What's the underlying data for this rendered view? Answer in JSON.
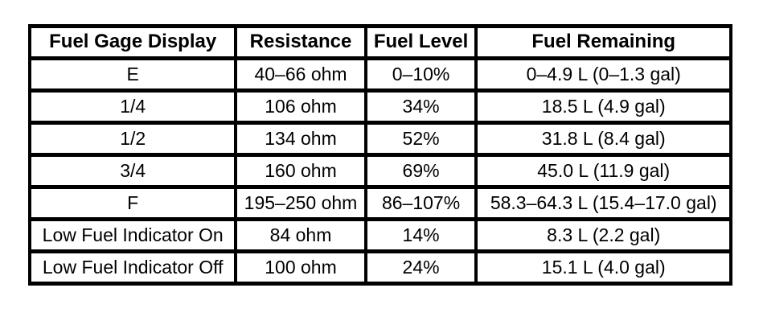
{
  "colors": {
    "border": "#000000",
    "background": "#ffffff",
    "text": "#000000"
  },
  "chart_data": {
    "type": "table",
    "columns": [
      "Fuel Gage Display",
      "Resistance",
      "Fuel Level",
      "Fuel Remaining"
    ],
    "rows": [
      [
        "E",
        "40–66 ohm",
        "0–10%",
        "0–4.9 L (0–1.3 gal)"
      ],
      [
        "1/4",
        "106 ohm",
        "34%",
        "18.5 L (4.9 gal)"
      ],
      [
        "1/2",
        "134 ohm",
        "52%",
        "31.8 L (8.4 gal)"
      ],
      [
        "3/4",
        "160 ohm",
        "69%",
        "45.0 L (11.9 gal)"
      ],
      [
        "F",
        "195–250 ohm",
        "86–107%",
        "58.3–64.3 L (15.4–17.0 gal)"
      ],
      [
        "Low Fuel Indicator On",
        "84 ohm",
        "14%",
        "8.3 L (2.2 gal)"
      ],
      [
        "Low Fuel Indicator Off",
        "100 ohm",
        "24%",
        "15.1 L (4.0 gal)"
      ]
    ]
  }
}
